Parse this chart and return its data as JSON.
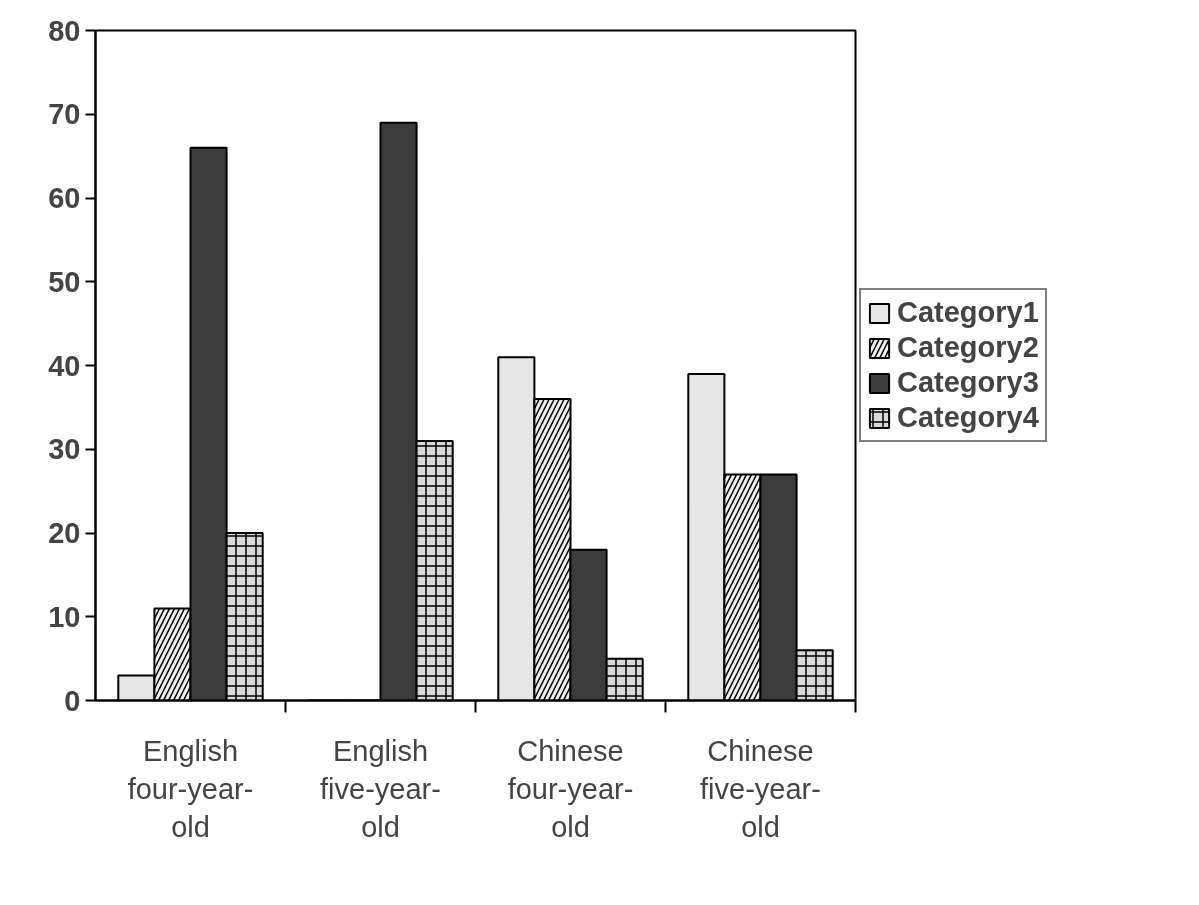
{
  "chart_data": {
    "type": "bar",
    "categories": [
      "English four-year-old",
      "English five-year-old",
      "Chinese four-year-old",
      "Chinese five-year-old"
    ],
    "series": [
      {
        "name": "Category1",
        "color": "#e6e6e6",
        "values": [
          3,
          0,
          41,
          39
        ]
      },
      {
        "name": "Category2",
        "color": "#f0f0f0",
        "values": [
          11,
          0,
          36,
          27
        ]
      },
      {
        "name": "Category3",
        "color": "#3c3c3c",
        "values": [
          66,
          69,
          18,
          27
        ]
      },
      {
        "name": "Category4",
        "color": "#d9d9d9",
        "values": [
          20,
          31,
          5,
          6
        ]
      }
    ],
    "ylim": [
      0,
      80
    ],
    "yticks": [
      0,
      10,
      20,
      30,
      40,
      50,
      60,
      70,
      80
    ],
    "grid": false,
    "legend": "right"
  }
}
